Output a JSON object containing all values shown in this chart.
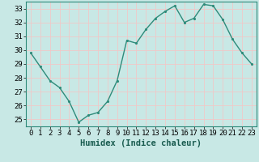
{
  "x": [
    0,
    1,
    2,
    3,
    4,
    5,
    6,
    7,
    8,
    9,
    10,
    11,
    12,
    13,
    14,
    15,
    16,
    17,
    18,
    19,
    20,
    21,
    22,
    23
  ],
  "y": [
    29.8,
    28.8,
    27.8,
    27.3,
    26.3,
    24.8,
    25.3,
    25.5,
    26.3,
    27.8,
    30.7,
    30.5,
    31.5,
    32.3,
    32.8,
    33.2,
    32.0,
    32.3,
    33.3,
    33.2,
    32.2,
    30.8,
    29.8,
    29.0
  ],
  "line_color": "#2e8b7a",
  "marker_color": "#2e8b7a",
  "bg_color": "#c8e8e5",
  "grid_color": "#f0c8c8",
  "title": "",
  "xlabel": "Humidex (Indice chaleur)",
  "ylabel": "",
  "xlim": [
    -0.5,
    23.5
  ],
  "ylim": [
    24.5,
    33.5
  ],
  "yticks": [
    25,
    26,
    27,
    28,
    29,
    30,
    31,
    32,
    33
  ],
  "xticks": [
    0,
    1,
    2,
    3,
    4,
    5,
    6,
    7,
    8,
    9,
    10,
    11,
    12,
    13,
    14,
    15,
    16,
    17,
    18,
    19,
    20,
    21,
    22,
    23
  ],
  "xlabel_fontsize": 7.5,
  "tick_fontsize": 6.5,
  "line_width": 1.0,
  "marker_size": 2.5
}
